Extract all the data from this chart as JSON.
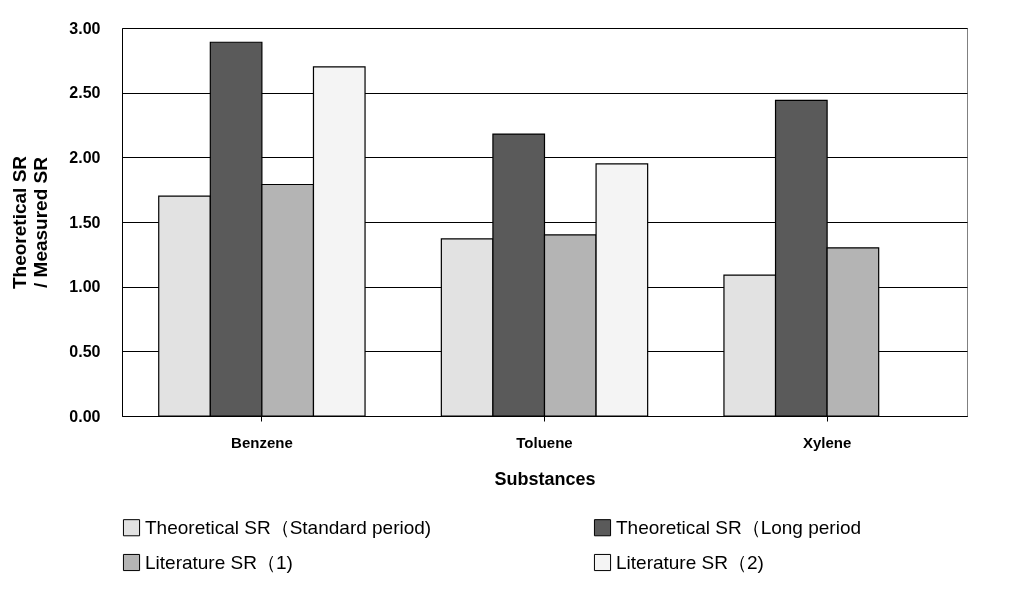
{
  "chart_data": {
    "type": "bar",
    "xlabel": "Substances",
    "ylabel": "Theoretical SR\n/ Measured SR",
    "categories": [
      "Benzene",
      "Toluene",
      "Xylene"
    ],
    "series": [
      {
        "name": "Theoretical SR（Standard period)",
        "color": "#e2e2e2",
        "values": [
          1.7,
          1.37,
          1.09
        ]
      },
      {
        "name": "Theoretical SR（Long period",
        "color": "#5a5a5a",
        "values": [
          2.89,
          2.18,
          2.44
        ]
      },
      {
        "name": "Literature SR（1)",
        "color": "#b4b4b4",
        "values": [
          1.79,
          1.4,
          1.3
        ]
      },
      {
        "name": "Literature SR（2)",
        "color": "#f4f4f4",
        "values": [
          2.7,
          1.95,
          null
        ]
      }
    ],
    "ylim": [
      0,
      3
    ],
    "yticks": [
      {
        "value": 0,
        "label": "0.00"
      },
      {
        "value": 0.5,
        "label": "0.50"
      },
      {
        "value": 1,
        "label": "1.00"
      },
      {
        "value": 1.5,
        "label": "1.50"
      },
      {
        "value": 2,
        "label": "2.00"
      },
      {
        "value": 2.5,
        "label": "2.50"
      },
      {
        "value": 3,
        "label": "3.00"
      }
    ],
    "grid": "y",
    "legend": "bottom"
  }
}
